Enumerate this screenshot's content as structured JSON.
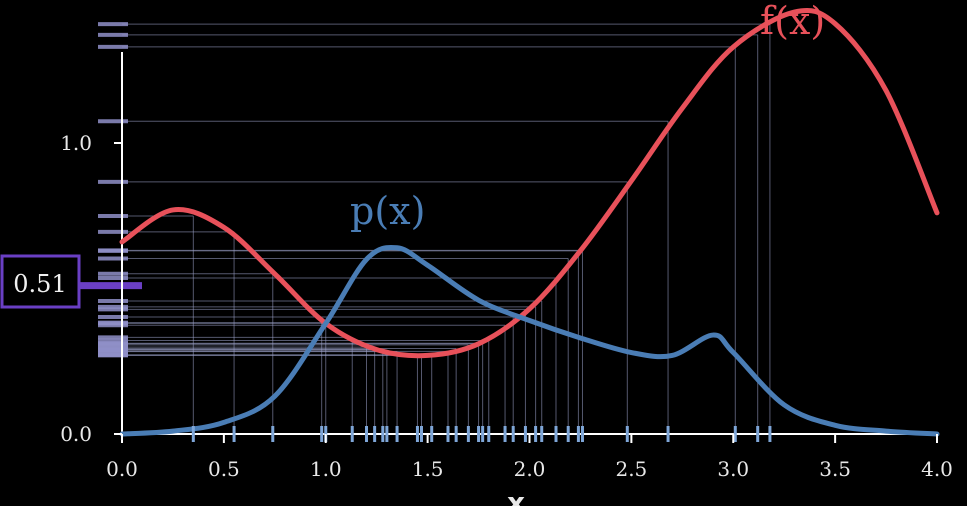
{
  "chart_data": {
    "type": "line",
    "title": "",
    "xlabel": "x",
    "ylabel": "",
    "xlim": [
      0,
      4
    ],
    "ylim": [
      0,
      1.5
    ],
    "x_ticks": [
      "0.0",
      "0.5",
      "1.0",
      "1.5",
      "2.0",
      "2.5",
      "3.0",
      "3.5",
      "4.0"
    ],
    "y_ticks": [
      "0.0",
      "1.0"
    ],
    "series": [
      {
        "name": "f(x)",
        "color": "#e8515a",
        "x": [
          0,
          0.25,
          0.5,
          0.75,
          1.0,
          1.25,
          1.5,
          1.75,
          2.0,
          2.25,
          2.5,
          2.75,
          3.0,
          3.3,
          3.5,
          3.75,
          4.0
        ],
        "y": [
          0.66,
          0.77,
          0.71,
          0.55,
          0.38,
          0.29,
          0.27,
          0.31,
          0.43,
          0.63,
          0.87,
          1.12,
          1.33,
          1.45,
          1.41,
          1.18,
          0.76
        ]
      },
      {
        "name": "p(x)",
        "color": "#4a7db5",
        "x": [
          0,
          0.25,
          0.5,
          0.75,
          1.0,
          1.2,
          1.35,
          1.5,
          1.75,
          2.0,
          2.25,
          2.5,
          2.7,
          2.9,
          3.0,
          3.25,
          3.5,
          3.75,
          4.0
        ],
        "y": [
          0.0,
          0.01,
          0.04,
          0.13,
          0.38,
          0.6,
          0.64,
          0.58,
          0.46,
          0.39,
          0.33,
          0.28,
          0.27,
          0.34,
          0.28,
          0.1,
          0.03,
          0.01,
          0.0
        ]
      }
    ],
    "samples_x": [
      0.35,
      0.55,
      0.74,
      0.98,
      1.0,
      1.13,
      1.2,
      1.24,
      1.28,
      1.3,
      1.35,
      1.45,
      1.47,
      1.52,
      1.6,
      1.64,
      1.7,
      1.75,
      1.77,
      1.8,
      1.88,
      1.92,
      1.98,
      2.03,
      2.06,
      2.13,
      2.19,
      2.24,
      2.26,
      2.48,
      2.68,
      3.01,
      3.12,
      3.18
    ],
    "readout": {
      "value": "0.51",
      "y": 0.51
    },
    "colors": {
      "background": "#000000",
      "axis": "#ffffff",
      "f_curve": "#e8515a",
      "p_curve": "#4a7db5",
      "sample_lines": "#9aa0c8",
      "readout_accent": "#6a3fc4"
    }
  },
  "labels": {
    "f_label": "f(x)",
    "p_label": "p(x)",
    "x_axis_title": "x"
  }
}
